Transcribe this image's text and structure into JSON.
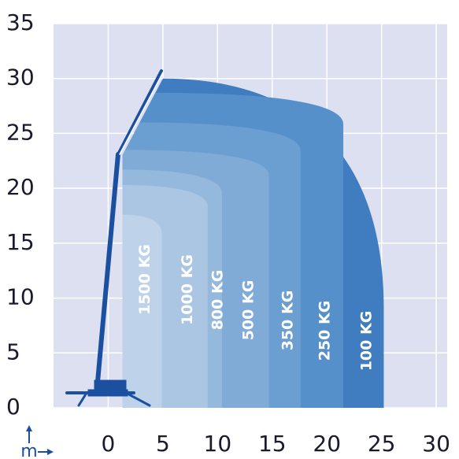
{
  "chart_data": {
    "type": "load-chart",
    "x_unit": "m",
    "xlim": [
      -5,
      31
    ],
    "ylim": [
      0,
      35
    ],
    "xticks": [
      0,
      5,
      10,
      15,
      20,
      25,
      30
    ],
    "yticks": [
      0,
      5,
      10,
      15,
      20,
      25,
      30,
      35
    ],
    "grid": true,
    "zones": [
      {
        "name": "100 KG",
        "color": "#3f7cc0",
        "reach": 25.2,
        "height": 30
      },
      {
        "name": "250 KG",
        "color": "#5690ca",
        "reach": 21.5,
        "height": 28.7
      },
      {
        "name": "350 KG",
        "color": "#6b9ed1",
        "reach": 17.6,
        "height": 26
      },
      {
        "name": "500 KG",
        "color": "#80abd7",
        "reach": 14.7,
        "height": 23.5
      },
      {
        "name": "800 KG",
        "color": "#95b9dd",
        "reach": 10.4,
        "height": 21.7
      },
      {
        "name": "1000 KG",
        "color": "#aac6e3",
        "reach": 9.1,
        "height": 20.3
      },
      {
        "name": "1500 KG",
        "color": "#bed3ea",
        "reach": 4.9,
        "height": 17.6
      }
    ]
  }
}
